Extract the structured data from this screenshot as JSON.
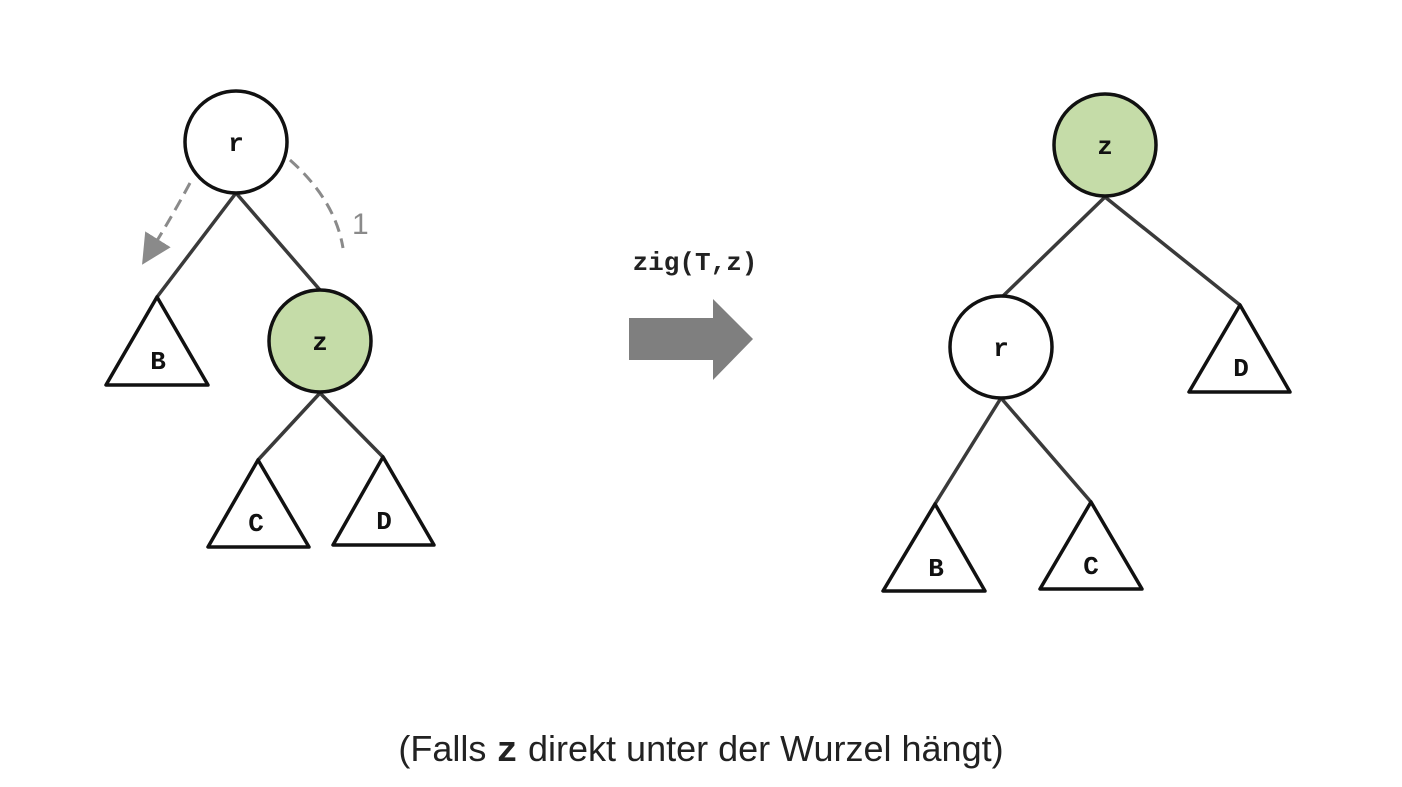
{
  "colors": {
    "highlight_node": "#c5dca8",
    "edge": "#3a3a3a",
    "rotation_hint": "#8a8a8a",
    "arrow": "#7f7f7f"
  },
  "left_tree": {
    "root": "r",
    "target": "z",
    "subtree_b": "B",
    "subtree_c": "C",
    "subtree_d": "D",
    "step_label": "1"
  },
  "operation": {
    "label": "zig(T,z)"
  },
  "right_tree": {
    "root": "z",
    "child": "r",
    "subtree_b": "B",
    "subtree_c": "C",
    "subtree_d": "D"
  },
  "caption": {
    "prefix": "(Falls ",
    "code": "z",
    "suffix": " direkt unter der Wurzel hängt)"
  }
}
